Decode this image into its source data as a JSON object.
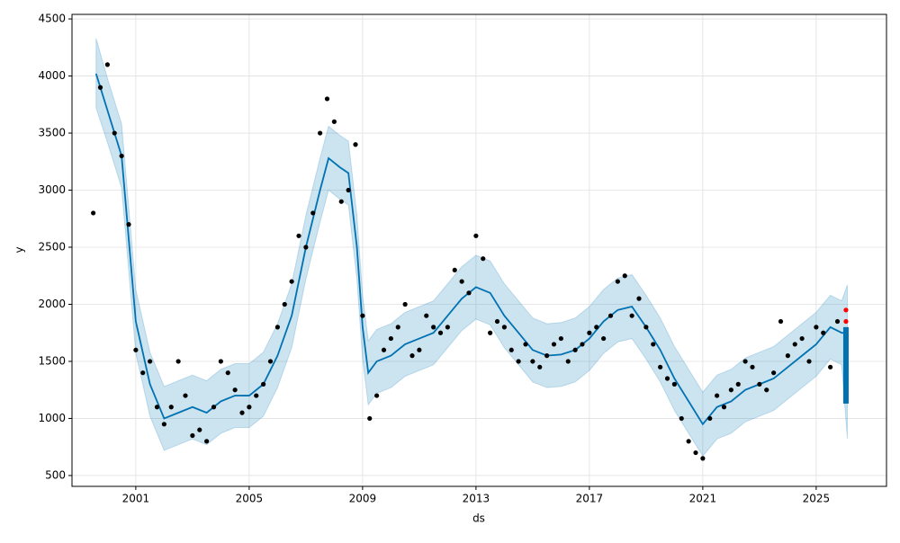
{
  "chart_data": {
    "type": "forecast",
    "x_label": "ds",
    "y_label": "y",
    "xlim": [
      1998.75,
      2027.48
    ],
    "ylim": [
      405,
      4540
    ],
    "xticks": [
      2001,
      2005,
      2009,
      2013,
      2017,
      2021,
      2025
    ],
    "yticks": [
      500,
      1000,
      1500,
      2000,
      2500,
      3000,
      3500,
      4000,
      4500
    ],
    "grid": true,
    "series": [
      {
        "style": "line",
        "color": "#0072b2",
        "band_color": "#0072b2",
        "x": [
          1999.6,
          2000,
          2000.5,
          2001,
          2001.5,
          2002,
          2002.5,
          2003,
          2003.5,
          2004,
          2004.5,
          2005,
          2005.5,
          2006,
          2006.5,
          2007,
          2007.5,
          2007.8,
          2008.2,
          2008.5,
          2008.8,
          2009,
          2009.2,
          2009.5,
          2010,
          2010.5,
          2011,
          2011.5,
          2012,
          2012.5,
          2013,
          2013.5,
          2014,
          2014.5,
          2015,
          2015.5,
          2016,
          2016.5,
          2017,
          2017.5,
          2018,
          2018.5,
          2019,
          2019.5,
          2020,
          2020.5,
          2021,
          2021.5,
          2022,
          2022.5,
          2023,
          2023.5,
          2024,
          2024.5,
          2025,
          2025.5,
          2025.9,
          2026.1
        ],
        "values": [
          4020,
          3700,
          3300,
          1850,
          1300,
          1000,
          1050,
          1100,
          1050,
          1150,
          1200,
          1200,
          1300,
          1550,
          1900,
          2500,
          3000,
          3280,
          3200,
          3150,
          2500,
          1800,
          1400,
          1500,
          1550,
          1650,
          1700,
          1750,
          1900,
          2050,
          2150,
          2100,
          1900,
          1750,
          1600,
          1550,
          1560,
          1600,
          1700,
          1850,
          1950,
          1980,
          1800,
          1600,
          1350,
          1150,
          950,
          1100,
          1150,
          1250,
          1300,
          1350,
          1450,
          1550,
          1650,
          1800,
          1750,
          1750
        ],
        "lower": [
          3720,
          3420,
          3020,
          1570,
          1020,
          720,
          770,
          820,
          770,
          870,
          920,
          920,
          1020,
          1270,
          1620,
          2220,
          2720,
          3000,
          2920,
          2870,
          2220,
          1520,
          1120,
          1220,
          1270,
          1370,
          1420,
          1470,
          1620,
          1770,
          1870,
          1820,
          1620,
          1470,
          1320,
          1270,
          1280,
          1320,
          1420,
          1570,
          1670,
          1700,
          1520,
          1320,
          1070,
          870,
          670,
          820,
          870,
          970,
          1020,
          1070,
          1170,
          1270,
          1370,
          1520,
          1470,
          820
        ],
        "upper": [
          4330,
          3980,
          3580,
          2130,
          1580,
          1280,
          1330,
          1380,
          1330,
          1430,
          1480,
          1480,
          1580,
          1830,
          2180,
          2780,
          3280,
          3560,
          3480,
          3430,
          2780,
          2080,
          1680,
          1780,
          1830,
          1930,
          1980,
          2030,
          2180,
          2330,
          2430,
          2380,
          2180,
          2030,
          1880,
          1830,
          1840,
          1880,
          1980,
          2130,
          2230,
          2260,
          2080,
          1880,
          1630,
          1430,
          1230,
          1380,
          1430,
          1530,
          1580,
          1630,
          1730,
          1830,
          1930,
          2080,
          2030,
          2170
        ]
      },
      {
        "style": "points",
        "color": "#000000",
        "x": [
          1999.5,
          1999.75,
          2000,
          2000.25,
          2000.5,
          2000.75,
          2001,
          2001.25,
          2001.5,
          2001.75,
          2002,
          2002.25,
          2002.5,
          2002.75,
          2003,
          2003.25,
          2003.5,
          2003.75,
          2004,
          2004.25,
          2004.5,
          2004.75,
          2005,
          2005.25,
          2005.5,
          2005.75,
          2006,
          2006.25,
          2006.5,
          2006.75,
          2007,
          2007.25,
          2007.5,
          2007.75,
          2008,
          2008.25,
          2008.5,
          2008.75,
          2009,
          2009.25,
          2009.5,
          2009.75,
          2010,
          2010.25,
          2010.5,
          2010.75,
          2011,
          2011.25,
          2011.5,
          2011.75,
          2012,
          2012.25,
          2012.5,
          2012.75,
          2013,
          2013.25,
          2013.5,
          2013.75,
          2014,
          2014.25,
          2014.5,
          2014.75,
          2015,
          2015.25,
          2015.5,
          2015.75,
          2016,
          2016.25,
          2016.5,
          2016.75,
          2017,
          2017.25,
          2017.5,
          2017.75,
          2018,
          2018.25,
          2018.5,
          2018.75,
          2019,
          2019.25,
          2019.5,
          2019.75,
          2020,
          2020.25,
          2020.5,
          2020.75,
          2021,
          2021.25,
          2021.5,
          2021.75,
          2022,
          2022.25,
          2022.5,
          2022.75,
          2023,
          2023.25,
          2023.5,
          2023.75,
          2024,
          2024.25,
          2024.5,
          2024.75,
          2025,
          2025.25,
          2025.5,
          2025.75
        ],
        "values": [
          2800,
          3900,
          4100,
          3500,
          3300,
          2700,
          1600,
          1400,
          1500,
          1100,
          950,
          1100,
          1500,
          1200,
          850,
          900,
          800,
          1100,
          1500,
          1400,
          1250,
          1050,
          1100,
          1200,
          1300,
          1500,
          1800,
          2000,
          2200,
          2600,
          2500,
          2800,
          3500,
          3800,
          3600,
          2900,
          3000,
          3400,
          1900,
          1000,
          1200,
          1600,
          1700,
          1800,
          2000,
          1550,
          1600,
          1900,
          1800,
          1750,
          1800,
          2300,
          2200,
          2100,
          2600,
          2400,
          1750,
          1850,
          1800,
          1600,
          1500,
          1650,
          1500,
          1450,
          1550,
          1650,
          1700,
          1500,
          1600,
          1650,
          1750,
          1800,
          1700,
          1900,
          2200,
          2250,
          1900,
          2050,
          1800,
          1650,
          1450,
          1350,
          1300,
          1000,
          800,
          700,
          650,
          1000,
          1200,
          1100,
          1250,
          1300,
          1500,
          1450,
          1300,
          1250,
          1400,
          1850,
          1550,
          1650,
          1700,
          1500,
          1800,
          1750,
          1450,
          1850
        ]
      },
      {
        "style": "points",
        "color": "#ff0000",
        "x": [
          2026.05,
          2026.05,
          2026.05
        ],
        "values": [
          1780,
          1850,
          1950
        ]
      },
      {
        "style": "range",
        "color": "#0072b2",
        "x": [
          2026.05
        ],
        "lower": [
          1130
        ],
        "upper": [
          1800
        ]
      }
    ]
  }
}
